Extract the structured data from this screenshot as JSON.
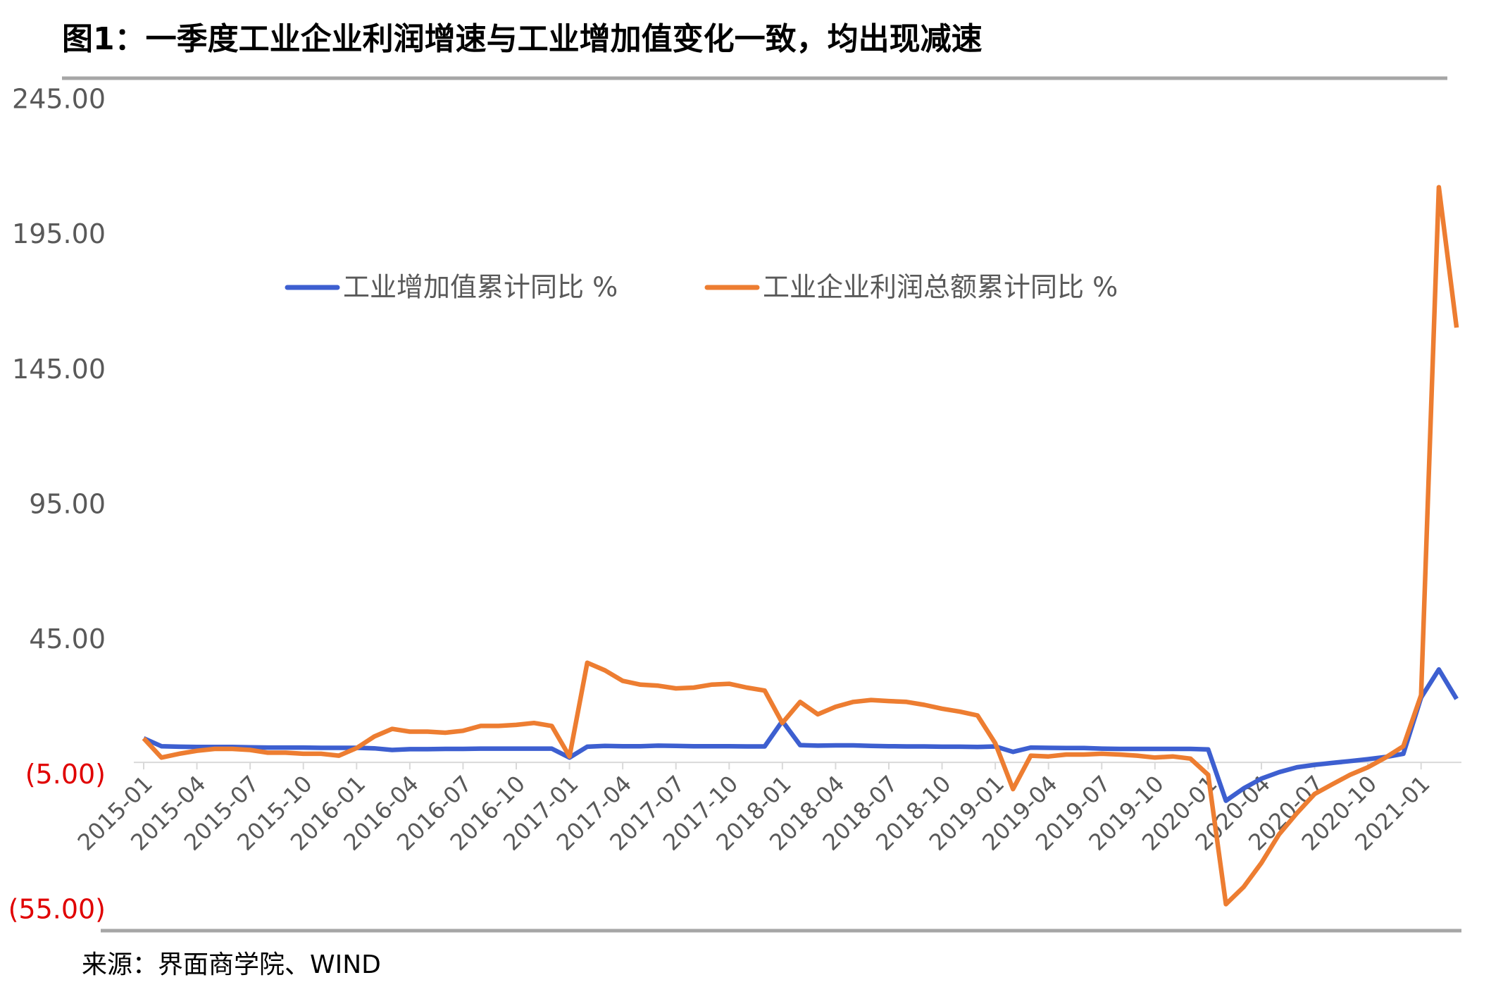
{
  "chart_data": {
    "type": "line",
    "title": "图1：一季度工业企业利润增速与工业增加值变化一致，均出现减速",
    "source": "来源：界面商学院、WIND",
    "categories": [
      "2015-01",
      null,
      null,
      "2015-04",
      null,
      null,
      "2015-07",
      null,
      null,
      "2015-10",
      null,
      null,
      "2016-01",
      null,
      null,
      "2016-04",
      null,
      null,
      "2016-07",
      null,
      null,
      "2016-10",
      null,
      null,
      "2017-01",
      null,
      null,
      "2017-04",
      null,
      null,
      "2017-07",
      null,
      null,
      "2017-10",
      null,
      null,
      "2018-01",
      null,
      null,
      "2018-04",
      null,
      null,
      "2018-07",
      null,
      null,
      "2018-10",
      null,
      null,
      "2019-01",
      null,
      null,
      "2019-04",
      null,
      null,
      "2019-07",
      null,
      null,
      "2019-10",
      null,
      null,
      "2020-01",
      null,
      null,
      "2020-04",
      null,
      null,
      "2020-07",
      null,
      null,
      "2020-10",
      null,
      null,
      "2021-01",
      null,
      null
    ],
    "series": [
      {
        "name": "工业增加值累计同比 %",
        "color": "#3d5fd0",
        "values": [
          8.9,
          6,
          5.8,
          5.7,
          5.7,
          5.7,
          5.6,
          5.5,
          5.5,
          5.5,
          5.4,
          5.4,
          5.4,
          5.2,
          4.6,
          4.9,
          4.9,
          5,
          5,
          5.1,
          5.1,
          5.1,
          5.1,
          5.1,
          1.8,
          5.8,
          6.1,
          6,
          6,
          6.2,
          6.1,
          6,
          6,
          6,
          5.9,
          5.9,
          15.3,
          6.4,
          6.2,
          6.3,
          6.3,
          6.1,
          6,
          5.9,
          5.9,
          5.8,
          5.8,
          5.7,
          5.9,
          3.9,
          5.5,
          5.4,
          5.3,
          5.3,
          5.1,
          5,
          5,
          5,
          5,
          5,
          4.8,
          -14.2,
          -9.6,
          -6,
          -3.6,
          -1.8,
          -0.9,
          -0.2,
          0.5,
          1.2,
          2,
          3.2,
          24,
          34.4,
          23.5
        ]
      },
      {
        "name": "工业企业利润总额累计同比 %",
        "color": "#ed7d31",
        "values": [
          8.9,
          1.8,
          3.2,
          4.3,
          5,
          5,
          4.6,
          3.6,
          3.6,
          3.2,
          3.2,
          2.5,
          5.3,
          9.6,
          12.4,
          11.4,
          11.4,
          11,
          11.7,
          13.5,
          13.5,
          13.9,
          14.6,
          13.5,
          2.2,
          36.9,
          34.1,
          30.2,
          28.8,
          28.4,
          27.4,
          27.7,
          28.8,
          29.1,
          27.7,
          26.6,
          14.6,
          22.4,
          17.8,
          20.6,
          22.4,
          23.1,
          22.7,
          22.4,
          21.3,
          19.9,
          18.8,
          17.4,
          7.1,
          -9.9,
          2.5,
          2.2,
          2.9,
          2.9,
          3.2,
          2.9,
          2.5,
          1.8,
          2.2,
          1.4,
          -4.6,
          -52.5,
          -46.1,
          -37.2,
          -26.6,
          -18.8,
          -11.7,
          -8.1,
          -4.6,
          -1.8,
          1.8,
          6,
          24.9,
          213,
          161
        ]
      }
    ],
    "ylim": [
      -55,
      245
    ],
    "yticks": [
      {
        "value": -55,
        "label": "(55.00)"
      },
      {
        "value": -5,
        "label": "(5.00)"
      },
      {
        "value": 45,
        "label": "45.00"
      },
      {
        "value": 95,
        "label": "95.00"
      },
      {
        "value": 145,
        "label": "145.00"
      },
      {
        "value": 195,
        "label": "195.00"
      },
      {
        "value": 245,
        "label": "245.00"
      }
    ],
    "negative_tick_color": "#e00000",
    "grid": false
  }
}
